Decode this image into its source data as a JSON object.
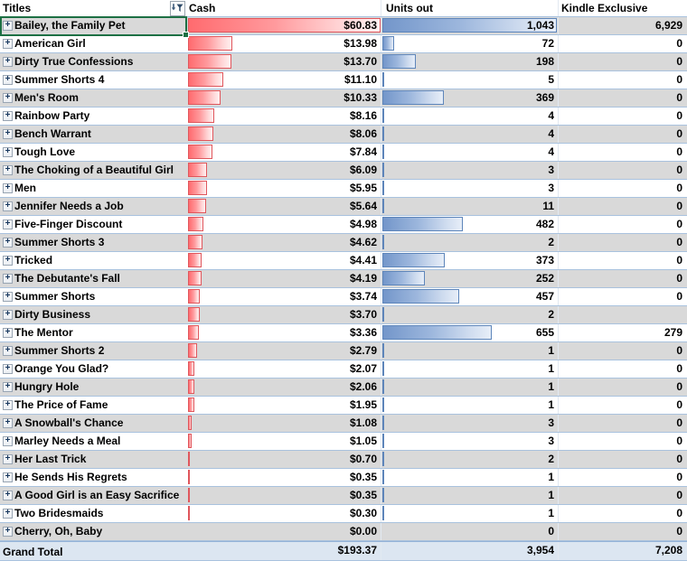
{
  "header": {
    "columns": [
      "Titles",
      "Cash",
      "Units out",
      "Kindle Exclusive"
    ]
  },
  "table": {
    "cash_max": 60.83,
    "units_max": 1043,
    "rows": [
      {
        "title": "Bailey, the Family Pet",
        "cash": "$60.83",
        "cash_val": 60.83,
        "units": "1,043",
        "units_val": 1043,
        "kindle": "6,929",
        "selected": true
      },
      {
        "title": "American Girl",
        "cash": "$13.98",
        "cash_val": 13.98,
        "units": "72",
        "units_val": 72,
        "kindle": "0"
      },
      {
        "title": "Dirty True Confessions",
        "cash": "$13.70",
        "cash_val": 13.7,
        "units": "198",
        "units_val": 198,
        "kindle": "0"
      },
      {
        "title": "Summer Shorts 4",
        "cash": "$11.10",
        "cash_val": 11.1,
        "units": "5",
        "units_val": 5,
        "kindle": "0"
      },
      {
        "title": "Men's Room",
        "cash": "$10.33",
        "cash_val": 10.33,
        "units": "369",
        "units_val": 369,
        "kindle": "0"
      },
      {
        "title": "Rainbow Party",
        "cash": "$8.16",
        "cash_val": 8.16,
        "units": "4",
        "units_val": 4,
        "kindle": "0"
      },
      {
        "title": "Bench Warrant",
        "cash": "$8.06",
        "cash_val": 8.06,
        "units": "4",
        "units_val": 4,
        "kindle": "0"
      },
      {
        "title": "Tough Love",
        "cash": "$7.84",
        "cash_val": 7.84,
        "units": "4",
        "units_val": 4,
        "kindle": "0"
      },
      {
        "title": "The Choking of a Beautiful Girl",
        "cash": "$6.09",
        "cash_val": 6.09,
        "units": "3",
        "units_val": 3,
        "kindle": "0"
      },
      {
        "title": "Men",
        "cash": "$5.95",
        "cash_val": 5.95,
        "units": "3",
        "units_val": 3,
        "kindle": "0"
      },
      {
        "title": "Jennifer Needs a Job",
        "cash": "$5.64",
        "cash_val": 5.64,
        "units": "11",
        "units_val": 11,
        "kindle": "0"
      },
      {
        "title": "Five-Finger Discount",
        "cash": "$4.98",
        "cash_val": 4.98,
        "units": "482",
        "units_val": 482,
        "kindle": "0"
      },
      {
        "title": "Summer Shorts 3",
        "cash": "$4.62",
        "cash_val": 4.62,
        "units": "2",
        "units_val": 2,
        "kindle": "0"
      },
      {
        "title": "Tricked",
        "cash": "$4.41",
        "cash_val": 4.41,
        "units": "373",
        "units_val": 373,
        "kindle": "0"
      },
      {
        "title": "The Debutante's Fall",
        "cash": "$4.19",
        "cash_val": 4.19,
        "units": "252",
        "units_val": 252,
        "kindle": "0"
      },
      {
        "title": "Summer Shorts",
        "cash": "$3.74",
        "cash_val": 3.74,
        "units": "457",
        "units_val": 457,
        "kindle": "0"
      },
      {
        "title": "Dirty Business",
        "cash": "$3.70",
        "cash_val": 3.7,
        "units": "2",
        "units_val": 2,
        "kindle": ""
      },
      {
        "title": "The Mentor",
        "cash": "$3.36",
        "cash_val": 3.36,
        "units": "655",
        "units_val": 655,
        "kindle": "279"
      },
      {
        "title": "Summer Shorts 2",
        "cash": "$2.79",
        "cash_val": 2.79,
        "units": "1",
        "units_val": 1,
        "kindle": "0"
      },
      {
        "title": "Orange You Glad?",
        "cash": "$2.07",
        "cash_val": 2.07,
        "units": "1",
        "units_val": 1,
        "kindle": "0"
      },
      {
        "title": "Hungry Hole",
        "cash": "$2.06",
        "cash_val": 2.06,
        "units": "1",
        "units_val": 1,
        "kindle": "0"
      },
      {
        "title": "The Price of Fame",
        "cash": "$1.95",
        "cash_val": 1.95,
        "units": "1",
        "units_val": 1,
        "kindle": "0"
      },
      {
        "title": "A Snowball's Chance",
        "cash": "$1.08",
        "cash_val": 1.08,
        "units": "3",
        "units_val": 3,
        "kindle": "0"
      },
      {
        "title": "Marley Needs a Meal",
        "cash": "$1.05",
        "cash_val": 1.05,
        "units": "3",
        "units_val": 3,
        "kindle": "0"
      },
      {
        "title": "Her Last Trick",
        "cash": "$0.70",
        "cash_val": 0.7,
        "units": "2",
        "units_val": 2,
        "kindle": "0"
      },
      {
        "title": "He Sends His Regrets",
        "cash": "$0.35",
        "cash_val": 0.35,
        "units": "1",
        "units_val": 1,
        "kindle": "0"
      },
      {
        "title": "A Good Girl is an Easy Sacrifice",
        "cash": "$0.35",
        "cash_val": 0.35,
        "units": "1",
        "units_val": 1,
        "kindle": "0"
      },
      {
        "title": "Two Bridesmaids",
        "cash": "$0.30",
        "cash_val": 0.3,
        "units": "1",
        "units_val": 1,
        "kindle": "0"
      },
      {
        "title": "Cherry, Oh, Baby",
        "cash": "$0.00",
        "cash_val": 0,
        "units": "0",
        "units_val": 0,
        "kindle": "0"
      }
    ],
    "grand_total": {
      "label": "Grand Total",
      "cash": "$193.37",
      "units": "3,954",
      "kindle": "7,208"
    }
  },
  "colors": {
    "band_gray": "#d9d9d9",
    "row_border": "#a9c2de",
    "cash_bar_border": "#e0565c",
    "cash_bar_fill": "#ff6b6f",
    "units_bar_border": "#5d85ba",
    "units_bar_fill": "#7396ca",
    "selection_green": "#1d7044",
    "total_row_bg": "#dce6f1",
    "total_row_border": "#95b3d7"
  }
}
